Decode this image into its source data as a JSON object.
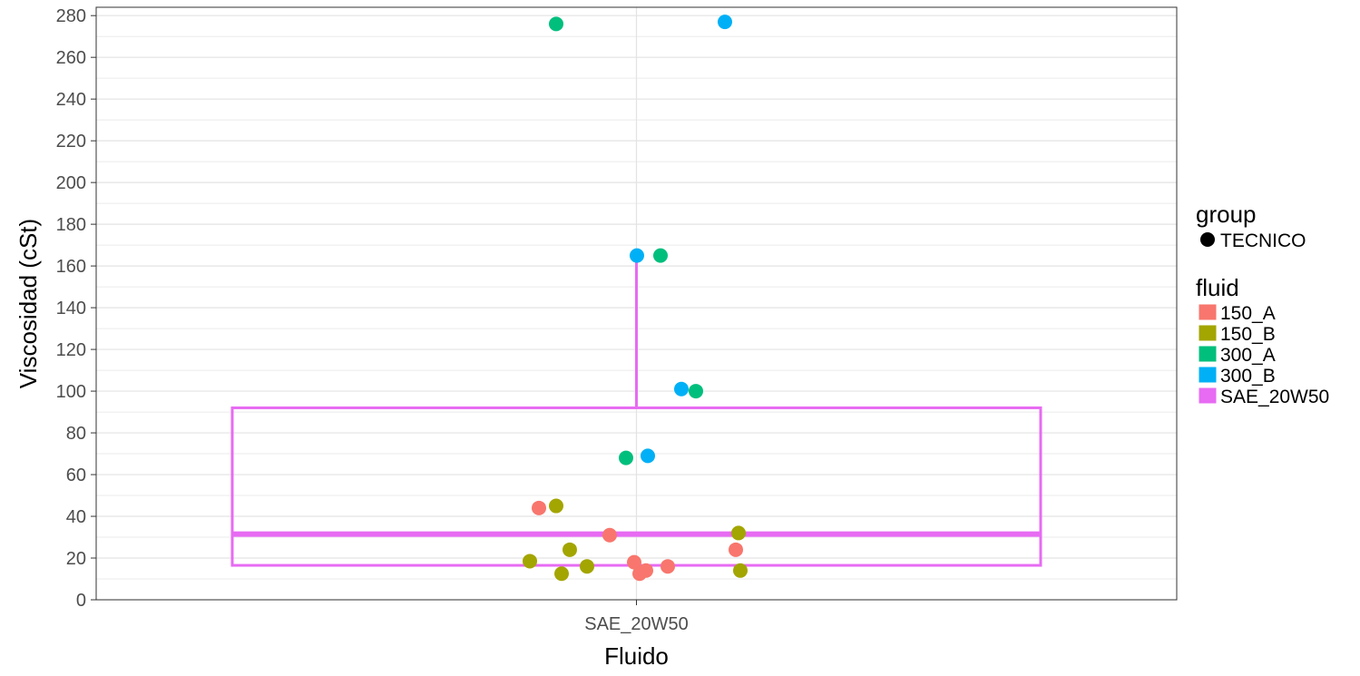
{
  "chart_data": {
    "type": "box",
    "xlabel": "Fluido",
    "ylabel": "Viscosidad (cSt)",
    "categories": [
      "SAE_20W50"
    ],
    "ylim": [
      0,
      284
    ],
    "yticks": [
      0,
      20,
      40,
      60,
      80,
      100,
      120,
      140,
      160,
      180,
      200,
      220,
      240,
      260,
      280
    ],
    "grid": true,
    "legend_position": "right",
    "box": {
      "category": "SAE_20W50",
      "fluid": "SAE_20W50",
      "q1": 16.5,
      "median": 31.5,
      "q3": 92,
      "whisker_low": 16.5,
      "whisker_high": 165
    },
    "series": [
      {
        "name": "150_A",
        "values": [
          44,
          31,
          18,
          12.5,
          14,
          16,
          24
        ]
      },
      {
        "name": "150_B",
        "values": [
          45,
          18.5,
          12.5,
          24,
          16,
          32,
          14
        ]
      },
      {
        "name": "300_A",
        "values": [
          276,
          165,
          100,
          68
        ]
      },
      {
        "name": "300_B",
        "values": [
          277,
          165,
          101,
          69
        ]
      }
    ],
    "legends": [
      {
        "title": "group",
        "items": [
          {
            "label": "TECNICO",
            "color": "#000000"
          }
        ]
      },
      {
        "title": "fluid",
        "items": [
          {
            "label": "150_A",
            "color": "#F8766D"
          },
          {
            "label": "150_B",
            "color": "#A3A500"
          },
          {
            "label": "300_A",
            "color": "#00BF7D"
          },
          {
            "label": "300_B",
            "color": "#00B0F6"
          },
          {
            "label": "SAE_20W50",
            "color": "#E76BF3"
          }
        ]
      }
    ]
  }
}
